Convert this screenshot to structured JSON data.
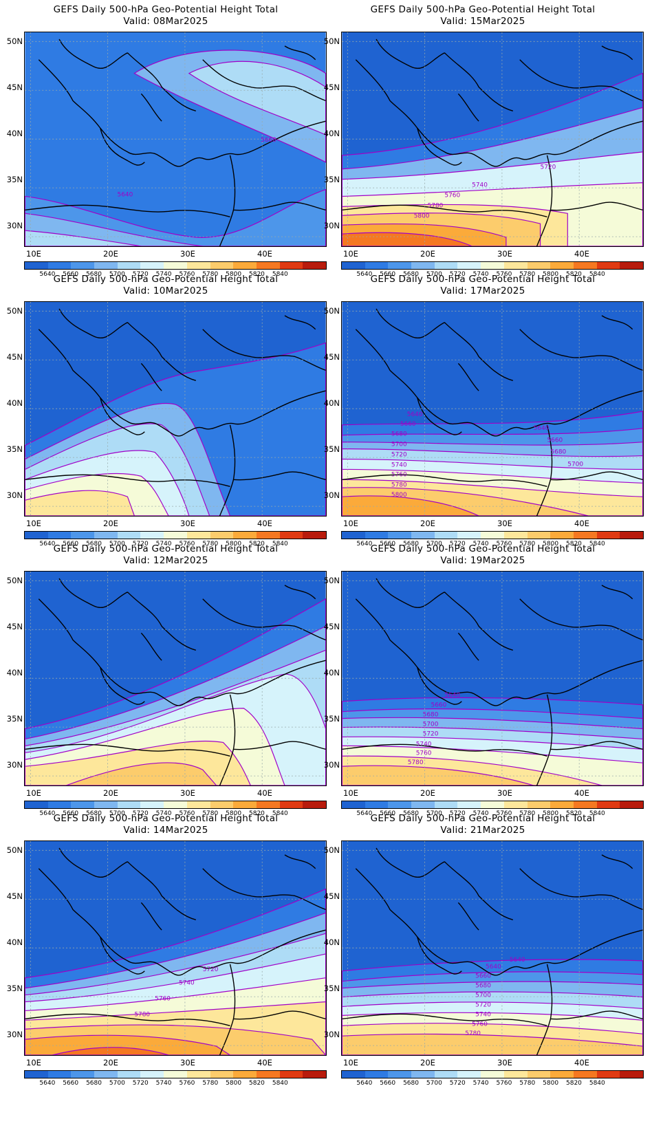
{
  "title_line1": "GEFS Daily 500-hPa Geo-Potential Height Total",
  "lat_labels": [
    "50N",
    "45N",
    "40N",
    "35N",
    "30N"
  ],
  "lon_labels": [
    "10E",
    "20E",
    "30E",
    "40E"
  ],
  "legend": {
    "colors": [
      "#1f63d1",
      "#2f7be3",
      "#4d96ea",
      "#7fb7f0",
      "#aedcf6",
      "#d6f3fb",
      "#f5fbd8",
      "#fde79b",
      "#fccc6c",
      "#fbaa3a",
      "#f57821",
      "#e03a12",
      "#b81b0c"
    ],
    "labels": [
      "5640",
      "5660",
      "5680",
      "5700",
      "5720",
      "5740",
      "5760",
      "5780",
      "5800",
      "5820",
      "5840"
    ]
  },
  "contour_color": "#a000c8",
  "panels": [
    {
      "valid": "Valid: 08Mar2025",
      "labels": [
        "5660",
        "5640"
      ]
    },
    {
      "valid": "Valid: 15Mar2025",
      "labels": [
        "5720",
        "5740",
        "5760",
        "5780",
        "5800"
      ]
    },
    {
      "valid": "Valid: 10Mar2025",
      "labels": []
    },
    {
      "valid": "Valid: 17Mar2025",
      "labels": [
        "5640",
        "5660",
        "5680",
        "5700",
        "5720",
        "5740",
        "5760",
        "5780",
        "5800",
        "5640",
        "5660",
        "5680",
        "5700"
      ]
    },
    {
      "valid": "Valid: 12Mar2025",
      "labels": []
    },
    {
      "valid": "Valid: 19Mar2025",
      "labels": [
        "5640",
        "5660",
        "5680",
        "5700",
        "5720",
        "5740",
        "5760",
        "5780"
      ]
    },
    {
      "valid": "Valid: 14Mar2025",
      "labels": [
        "5720",
        "5740",
        "5760",
        "5780"
      ]
    },
    {
      "valid": "Valid: 21Mar2025",
      "labels": [
        "5640",
        "5640",
        "5660",
        "5680",
        "5700",
        "5720",
        "5740",
        "5760",
        "5780"
      ]
    }
  ]
}
